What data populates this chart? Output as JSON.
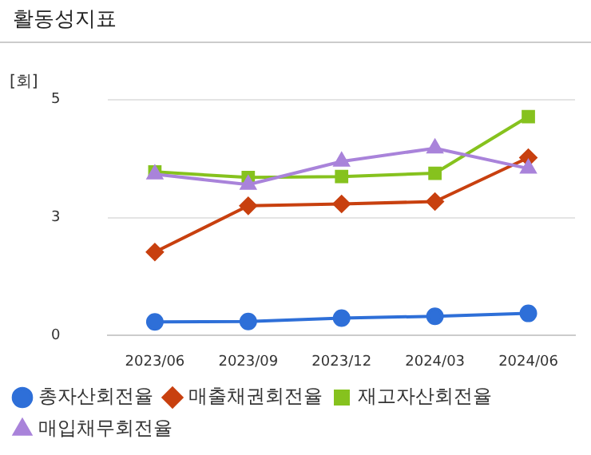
{
  "chart_data": {
    "type": "line",
    "title": "활동성지표",
    "ylabel": "[회]",
    "categories": [
      "2023/06",
      "2023/09",
      "2023/12",
      "2024/03",
      "2024/06"
    ],
    "series": [
      {
        "name": "총자산회전율",
        "color": "#2e6fd8",
        "marker": "circle",
        "values": [
          0.29,
          0.3,
          0.37,
          0.41,
          0.47
        ]
      },
      {
        "name": "매출채권회전율",
        "color": "#c8400f",
        "marker": "diamond",
        "values": [
          1.77,
          2.75,
          2.79,
          2.84,
          3.77
        ]
      },
      {
        "name": "재고자산회전율",
        "color": "#86c21e",
        "marker": "square",
        "values": [
          3.47,
          3.35,
          3.37,
          3.44,
          4.64
        ]
      },
      {
        "name": "매입채무회전율",
        "color": "#a983da",
        "marker": "triangle",
        "values": [
          3.42,
          3.2,
          3.69,
          3.97,
          3.54
        ]
      }
    ],
    "ylim": [
      0,
      5
    ],
    "yticks": [
      0,
      {
        "value": 2.5,
        "label": "3"
      },
      5
    ],
    "grid": "y",
    "legend": "bottom"
  }
}
